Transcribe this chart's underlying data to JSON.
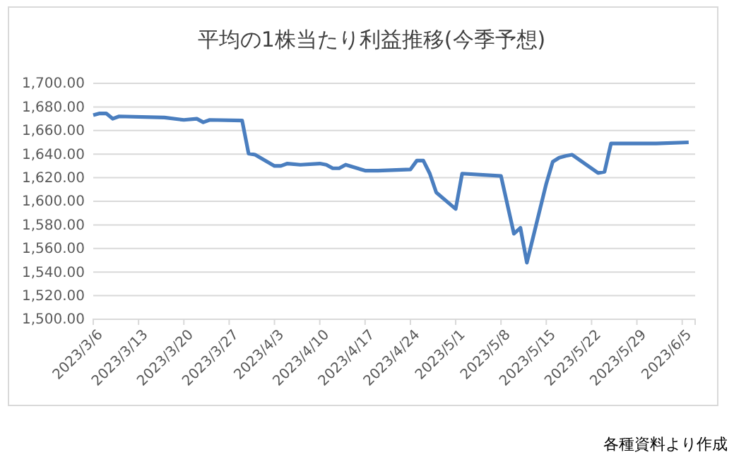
{
  "chart_data": {
    "type": "line",
    "title": "平均の1株当たり利益推移(今季予想)",
    "x": [
      "2023-03-06",
      "2023-03-07",
      "2023-03-08",
      "2023-03-09",
      "2023-03-10",
      "2023-03-17",
      "2023-03-20",
      "2023-03-22",
      "2023-03-23",
      "2023-03-24",
      "2023-03-29",
      "2023-03-30",
      "2023-03-31",
      "2023-04-03",
      "2023-04-04",
      "2023-04-05",
      "2023-04-07",
      "2023-04-10",
      "2023-04-11",
      "2023-04-12",
      "2023-04-13",
      "2023-04-14",
      "2023-04-17",
      "2023-04-19",
      "2023-04-24",
      "2023-04-25",
      "2023-04-26",
      "2023-04-27",
      "2023-04-28",
      "2023-05-01",
      "2023-05-02",
      "2023-05-08",
      "2023-05-10",
      "2023-05-11",
      "2023-05-12",
      "2023-05-15",
      "2023-05-16",
      "2023-05-17",
      "2023-05-18",
      "2023-05-19",
      "2023-05-23",
      "2023-05-24",
      "2023-05-25",
      "2023-06-01",
      "2023-06-06"
    ],
    "series": [
      {
        "color": "#4a7ebf",
        "values": [
          1673,
          1674.5,
          1674.5,
          1670,
          1672,
          1671,
          1669,
          1670,
          1667,
          1669,
          1668.5,
          1640.5,
          1639.5,
          1630,
          1630,
          1632,
          1631,
          1632,
          1631,
          1628,
          1628,
          1631,
          1626,
          1626,
          1627,
          1634.5,
          1634.5,
          1623.5,
          1607.5,
          1593.5,
          1623.5,
          1621.5,
          1572.5,
          1577.5,
          1548,
          1615,
          1633.5,
          1637,
          1638.5,
          1639.5,
          1624,
          1625,
          1649,
          1649,
          1650
        ]
      }
    ],
    "xlim": [
      "2023-03-06",
      "2023-06-07"
    ],
    "xticks": [
      {
        "value": "2023-03-06",
        "label": "2023/3/6"
      },
      {
        "value": "2023-03-13",
        "label": "2023/3/13"
      },
      {
        "value": "2023-03-20",
        "label": "2023/3/20"
      },
      {
        "value": "2023-03-27",
        "label": "2023/3/27"
      },
      {
        "value": "2023-04-03",
        "label": "2023/4/3"
      },
      {
        "value": "2023-04-10",
        "label": "2023/4/10"
      },
      {
        "value": "2023-04-17",
        "label": "2023/4/17"
      },
      {
        "value": "2023-04-24",
        "label": "2023/4/24"
      },
      {
        "value": "2023-05-01",
        "label": "2023/5/1"
      },
      {
        "value": "2023-05-08",
        "label": "2023/5/8"
      },
      {
        "value": "2023-05-15",
        "label": "2023/5/15"
      },
      {
        "value": "2023-05-22",
        "label": "2023/5/22"
      },
      {
        "value": "2023-05-29",
        "label": "2023/5/29"
      },
      {
        "value": "2023-06-05",
        "label": "2023/6/5"
      }
    ],
    "ylim": [
      1500,
      1700
    ],
    "yticks": [
      {
        "value": 1500,
        "label": "1,500.00"
      },
      {
        "value": 1520,
        "label": "1,520.00"
      },
      {
        "value": 1540,
        "label": "1,540.00"
      },
      {
        "value": 1560,
        "label": "1,560.00"
      },
      {
        "value": 1580,
        "label": "1,580.00"
      },
      {
        "value": 1600,
        "label": "1,600.00"
      },
      {
        "value": 1620,
        "label": "1,620.00"
      },
      {
        "value": 1640,
        "label": "1,640.00"
      },
      {
        "value": 1660,
        "label": "1,660.00"
      },
      {
        "value": 1680,
        "label": "1,680.00"
      },
      {
        "value": 1700,
        "label": "1,700.00"
      }
    ],
    "grid": "y",
    "annotations": [
      "各種資料より作成"
    ]
  }
}
